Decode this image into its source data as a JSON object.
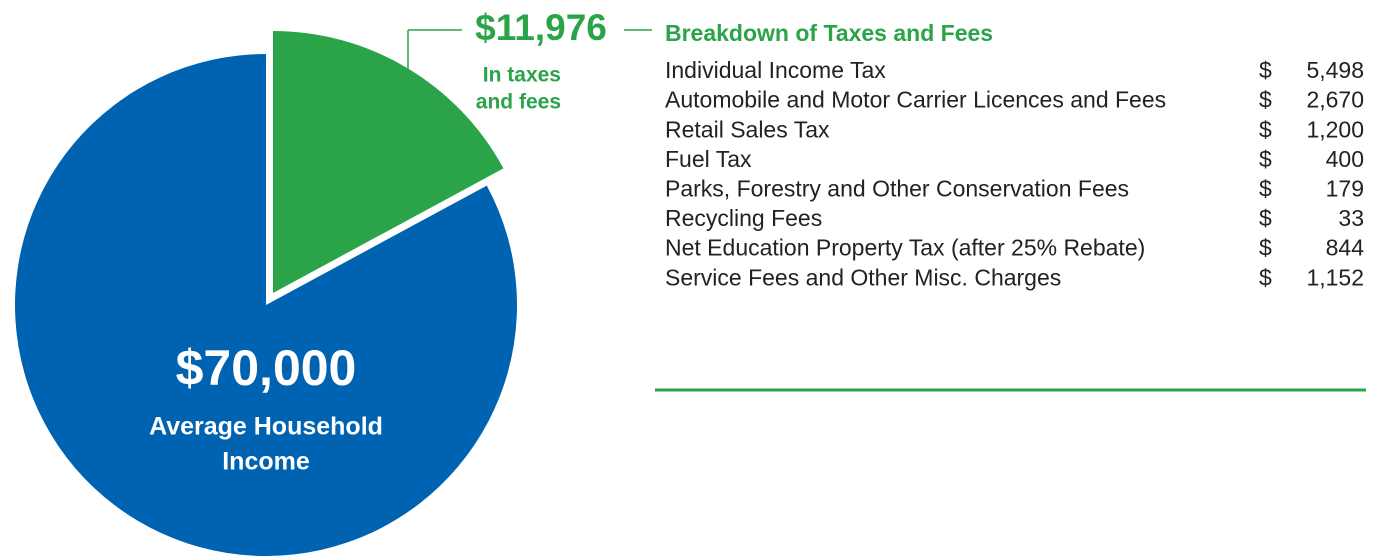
{
  "chart_data": {
    "type": "pie",
    "values": [
      11976
    ],
    "value_labels": [
      "$11,976"
    ],
    "slice_caption": [
      "In taxes",
      "and fees"
    ],
    "color": "#2ba349",
    "total": 70000,
    "total_label": "$70,000",
    "total_caption": [
      "Average Household",
      "Income"
    ],
    "total_color": "#0063b1"
  },
  "table": {
    "title": "Breakdown of Taxes and Fees",
    "rows": [
      {
        "label": "Individual Income Tax",
        "currency": "$",
        "amount": "5,498"
      },
      {
        "label": "Automobile and Motor Carrier Licences and Fees",
        "currency": "$",
        "amount": "2,670"
      },
      {
        "label": "Retail Sales Tax",
        "currency": "$",
        "amount": "1,200"
      },
      {
        "label": "Fuel Tax",
        "currency": "$",
        "amount": "400"
      },
      {
        "label": "Parks, Forestry and Other Conservation Fees",
        "currency": "$",
        "amount": "179"
      },
      {
        "label": "Recycling Fees",
        "currency": "$",
        "amount": "33"
      },
      {
        "label": "Net Education Property Tax (after 25% Rebate)",
        "currency": "$",
        "amount": "844"
      },
      {
        "label": "Service Fees and Other Misc. Charges",
        "currency": "$",
        "amount": "1,152"
      }
    ]
  }
}
